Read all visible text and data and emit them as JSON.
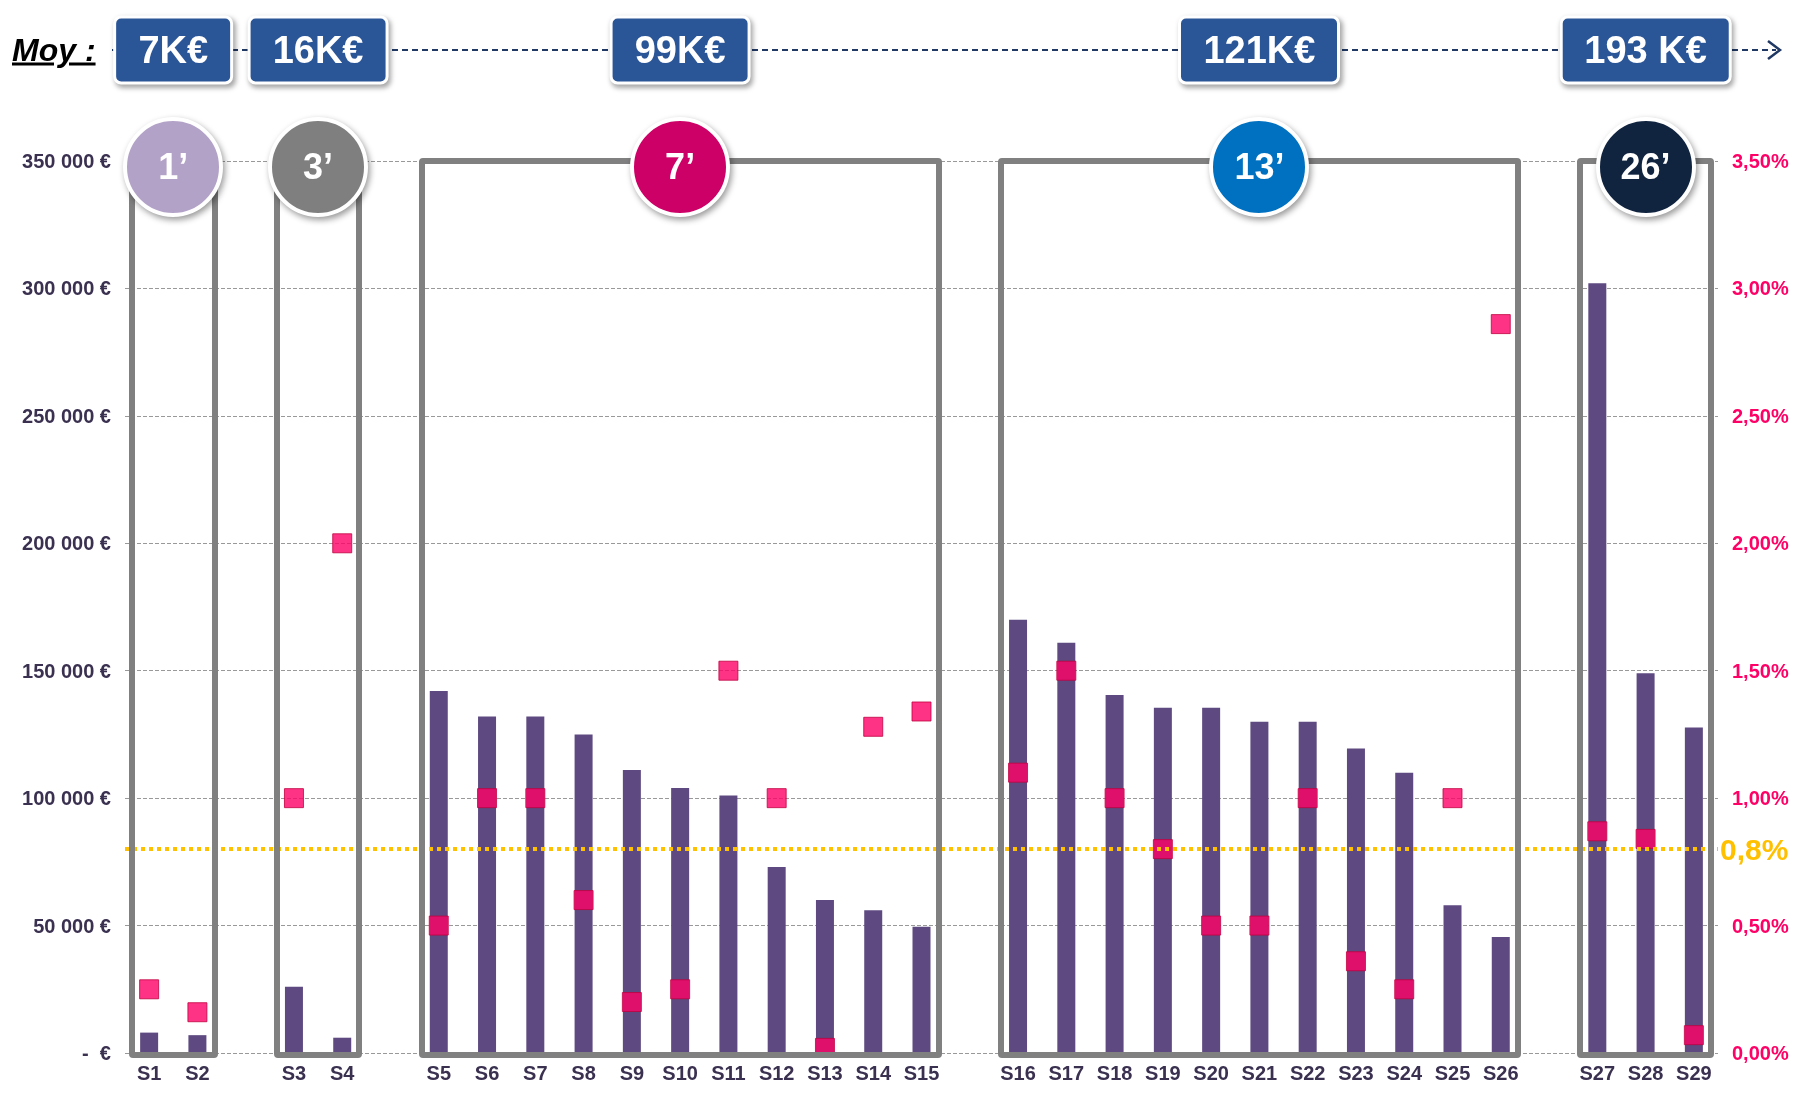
{
  "chart_data": {
    "type": "bar",
    "categories": [
      "S1",
      "S2",
      null,
      "S3",
      "S4",
      null,
      "S5",
      "S6",
      "S7",
      "S8",
      "S9",
      "S10",
      "S11",
      "S12",
      "S13",
      "S14",
      "S15",
      null,
      "S16",
      "S17",
      "S18",
      "S19",
      "S20",
      "S21",
      "S22",
      "S23",
      "S24",
      "S25",
      "S26",
      null,
      "S27",
      "S28",
      "S29"
    ],
    "series": [
      {
        "color": "#5e4a80",
        "values": [
          8000,
          7000,
          null,
          26000,
          6000,
          null,
          142000,
          132000,
          132000,
          125000,
          111000,
          104000,
          101000,
          73000,
          60000,
          56000,
          49500,
          null,
          170000,
          161000,
          140500,
          135500,
          135500,
          130000,
          130000,
          119500,
          110000,
          58000,
          45500,
          null,
          302000,
          149000,
          127700
        ]
      },
      {
        "type": "scatter",
        "axis": "y2",
        "color": "#ff0066",
        "values": [
          0.25,
          0.16,
          null,
          1.0,
          2.0,
          null,
          0.5,
          1.0,
          1.0,
          0.6,
          0.2,
          0.25,
          1.5,
          1.0,
          0.02,
          1.28,
          1.34,
          null,
          1.1,
          1.5,
          1.0,
          0.8,
          0.5,
          0.5,
          1.0,
          0.36,
          0.25,
          1.0,
          2.86,
          null,
          0.87,
          0.84,
          0.07
        ]
      }
    ],
    "marker": "square",
    "ylim": [
      0,
      350000
    ],
    "yticks": [
      {
        "value": 0,
        "label": "-  €"
      },
      {
        "value": 50000,
        "label": "50 000 €"
      },
      {
        "value": 100000,
        "label": "100 000 €"
      },
      {
        "value": 150000,
        "label": "150 000 €"
      },
      {
        "value": 200000,
        "label": "200 000 €"
      },
      {
        "value": 250000,
        "label": "250 000 €"
      },
      {
        "value": 300000,
        "label": "300 000 €"
      },
      {
        "value": 350000,
        "label": "350 000 €"
      }
    ],
    "y2lim": [
      0,
      3.5
    ],
    "y2ticks": [
      {
        "value": 0,
        "label": "0,00%"
      },
      {
        "value": 0.5,
        "label": "0,50%"
      },
      {
        "value": 1,
        "label": "1,00%"
      },
      {
        "value": 1.5,
        "label": "1,50%"
      },
      {
        "value": 2,
        "label": "2,00%"
      },
      {
        "value": 2.5,
        "label": "2,50%"
      },
      {
        "value": 3,
        "label": "3,00%"
      },
      {
        "value": 3.5,
        "label": "3,50%"
      }
    ],
    "grid": "y",
    "ref_lines": [
      {
        "axis": "y2",
        "value": 0.8,
        "label": "0,8%",
        "color": "#ffc000",
        "line_style": "dotted"
      }
    ],
    "annotations": [
      "Moy :",
      "7K€",
      "16K€",
      "99K€",
      "121K€",
      "193 K€",
      "1’",
      "3’",
      "7’",
      "13’",
      "26’"
    ]
  }
}
